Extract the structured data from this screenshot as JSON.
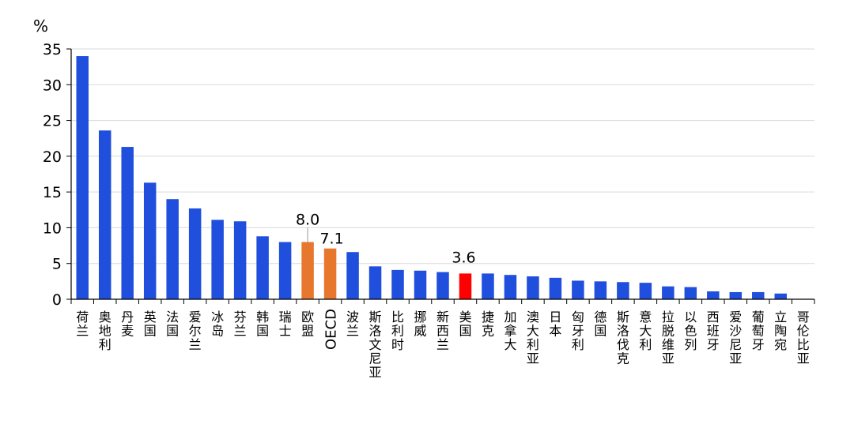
{
  "chart_data": {
    "type": "bar",
    "unit_label": "%",
    "ylim": [
      0,
      35
    ],
    "yticks": [
      0,
      5,
      10,
      15,
      20,
      25,
      30,
      35
    ],
    "grid": true,
    "categories": [
      "荷兰",
      "奥地利",
      "丹麦",
      "英国",
      "法国",
      "爱尔兰",
      "冰岛",
      "芬兰",
      "韩国",
      "瑞士",
      "欧盟",
      "OECD",
      "波兰",
      "斯洛文尼亚",
      "比利时",
      "挪威",
      "新西兰",
      "美国",
      "捷克",
      "加拿大",
      "澳大利亚",
      "日本",
      "匈牙利",
      "德国",
      "斯洛伐克",
      "意大利",
      "拉脱维亚",
      "以色列",
      "西班牙",
      "爱沙尼亚",
      "葡萄牙",
      "立陶宛",
      "哥伦比亚"
    ],
    "values": [
      34.0,
      23.6,
      21.3,
      16.3,
      14.0,
      12.7,
      11.1,
      10.9,
      8.8,
      8.0,
      8.0,
      7.1,
      6.6,
      4.6,
      4.1,
      4.0,
      3.8,
      3.6,
      3.6,
      3.4,
      3.2,
      3.0,
      2.6,
      2.5,
      2.4,
      2.3,
      1.8,
      1.7,
      1.1,
      1.0,
      1.0,
      0.8,
      0.0
    ],
    "data_labels": {
      "欧盟": "8.0",
      "OECD": "7.1",
      "美国": "3.6"
    },
    "colors": {
      "default": "#1f4fdc",
      "highlight_group": "#e8772e",
      "highlight_us": "#ff0000",
      "axis": "#000000",
      "grid": "#d9d9d9"
    },
    "highlight_group": [
      "欧盟",
      "OECD"
    ],
    "highlight_us": [
      "美国"
    ]
  }
}
